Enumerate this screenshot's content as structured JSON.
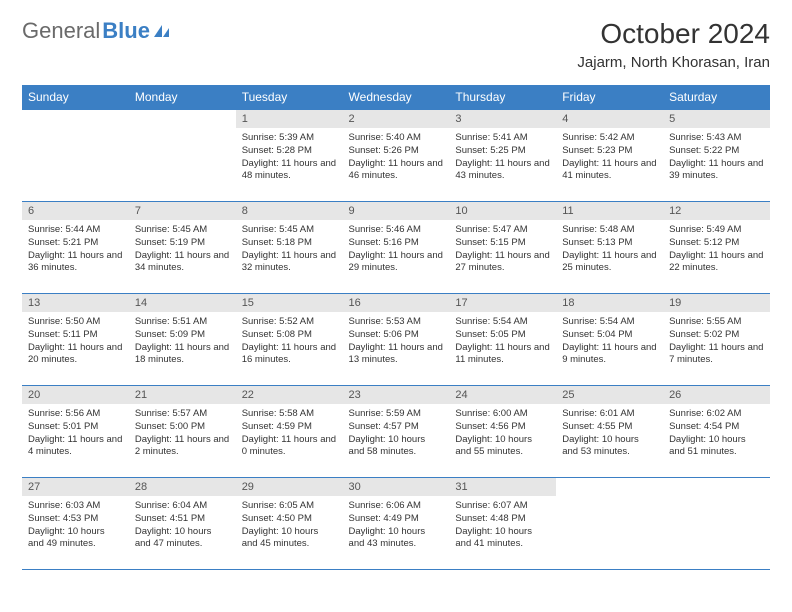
{
  "brand": {
    "part1": "General",
    "part2": "Blue",
    "accent": "#3b7fc4"
  },
  "title": "October 2024",
  "location": "Jajarm, North Khorasan, Iran",
  "table_styling": {
    "header_bg": "#3b7fc4",
    "header_text": "#ffffff",
    "daynum_bg": "#e6e6e6",
    "border_color": "#3b7fc4",
    "body_text": "#333333",
    "font_size_header": 12,
    "font_size_daynum": 11,
    "font_size_body": 9.5,
    "columns": 7,
    "rows": 5
  },
  "week_days": [
    "Sunday",
    "Monday",
    "Tuesday",
    "Wednesday",
    "Thursday",
    "Friday",
    "Saturday"
  ],
  "days": [
    null,
    null,
    {
      "n": "1",
      "sr": "5:39 AM",
      "ss": "5:28 PM",
      "dl": "11 hours and 48 minutes."
    },
    {
      "n": "2",
      "sr": "5:40 AM",
      "ss": "5:26 PM",
      "dl": "11 hours and 46 minutes."
    },
    {
      "n": "3",
      "sr": "5:41 AM",
      "ss": "5:25 PM",
      "dl": "11 hours and 43 minutes."
    },
    {
      "n": "4",
      "sr": "5:42 AM",
      "ss": "5:23 PM",
      "dl": "11 hours and 41 minutes."
    },
    {
      "n": "5",
      "sr": "5:43 AM",
      "ss": "5:22 PM",
      "dl": "11 hours and 39 minutes."
    },
    {
      "n": "6",
      "sr": "5:44 AM",
      "ss": "5:21 PM",
      "dl": "11 hours and 36 minutes."
    },
    {
      "n": "7",
      "sr": "5:45 AM",
      "ss": "5:19 PM",
      "dl": "11 hours and 34 minutes."
    },
    {
      "n": "8",
      "sr": "5:45 AM",
      "ss": "5:18 PM",
      "dl": "11 hours and 32 minutes."
    },
    {
      "n": "9",
      "sr": "5:46 AM",
      "ss": "5:16 PM",
      "dl": "11 hours and 29 minutes."
    },
    {
      "n": "10",
      "sr": "5:47 AM",
      "ss": "5:15 PM",
      "dl": "11 hours and 27 minutes."
    },
    {
      "n": "11",
      "sr": "5:48 AM",
      "ss": "5:13 PM",
      "dl": "11 hours and 25 minutes."
    },
    {
      "n": "12",
      "sr": "5:49 AM",
      "ss": "5:12 PM",
      "dl": "11 hours and 22 minutes."
    },
    {
      "n": "13",
      "sr": "5:50 AM",
      "ss": "5:11 PM",
      "dl": "11 hours and 20 minutes."
    },
    {
      "n": "14",
      "sr": "5:51 AM",
      "ss": "5:09 PM",
      "dl": "11 hours and 18 minutes."
    },
    {
      "n": "15",
      "sr": "5:52 AM",
      "ss": "5:08 PM",
      "dl": "11 hours and 16 minutes."
    },
    {
      "n": "16",
      "sr": "5:53 AM",
      "ss": "5:06 PM",
      "dl": "11 hours and 13 minutes."
    },
    {
      "n": "17",
      "sr": "5:54 AM",
      "ss": "5:05 PM",
      "dl": "11 hours and 11 minutes."
    },
    {
      "n": "18",
      "sr": "5:54 AM",
      "ss": "5:04 PM",
      "dl": "11 hours and 9 minutes."
    },
    {
      "n": "19",
      "sr": "5:55 AM",
      "ss": "5:02 PM",
      "dl": "11 hours and 7 minutes."
    },
    {
      "n": "20",
      "sr": "5:56 AM",
      "ss": "5:01 PM",
      "dl": "11 hours and 4 minutes."
    },
    {
      "n": "21",
      "sr": "5:57 AM",
      "ss": "5:00 PM",
      "dl": "11 hours and 2 minutes."
    },
    {
      "n": "22",
      "sr": "5:58 AM",
      "ss": "4:59 PM",
      "dl": "11 hours and 0 minutes."
    },
    {
      "n": "23",
      "sr": "5:59 AM",
      "ss": "4:57 PM",
      "dl": "10 hours and 58 minutes."
    },
    {
      "n": "24",
      "sr": "6:00 AM",
      "ss": "4:56 PM",
      "dl": "10 hours and 55 minutes."
    },
    {
      "n": "25",
      "sr": "6:01 AM",
      "ss": "4:55 PM",
      "dl": "10 hours and 53 minutes."
    },
    {
      "n": "26",
      "sr": "6:02 AM",
      "ss": "4:54 PM",
      "dl": "10 hours and 51 minutes."
    },
    {
      "n": "27",
      "sr": "6:03 AM",
      "ss": "4:53 PM",
      "dl": "10 hours and 49 minutes."
    },
    {
      "n": "28",
      "sr": "6:04 AM",
      "ss": "4:51 PM",
      "dl": "10 hours and 47 minutes."
    },
    {
      "n": "29",
      "sr": "6:05 AM",
      "ss": "4:50 PM",
      "dl": "10 hours and 45 minutes."
    },
    {
      "n": "30",
      "sr": "6:06 AM",
      "ss": "4:49 PM",
      "dl": "10 hours and 43 minutes."
    },
    {
      "n": "31",
      "sr": "6:07 AM",
      "ss": "4:48 PM",
      "dl": "10 hours and 41 minutes."
    },
    null,
    null
  ],
  "labels": {
    "sunrise": "Sunrise:",
    "sunset": "Sunset:",
    "daylight": "Daylight:"
  }
}
